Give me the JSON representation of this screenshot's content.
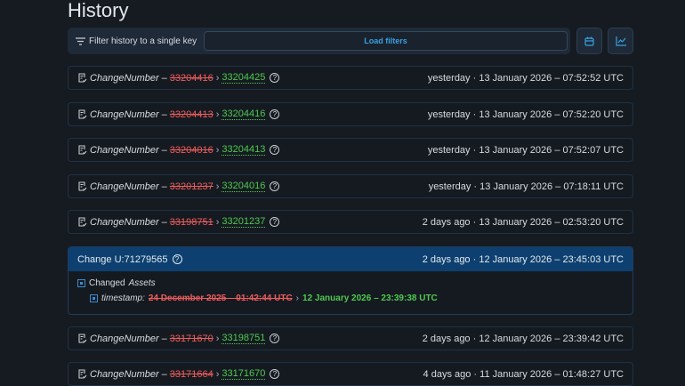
{
  "page_title": "History",
  "toolbar": {
    "filter_label": "Filter history to a single key",
    "load_filters": "Load filters",
    "calendar_icon": "calendar-icon",
    "chart_icon": "chart-line-icon"
  },
  "colors": {
    "old": "#ee5c5c",
    "new": "#4fc94f",
    "accent": "#3aa0e0",
    "expanded_header": "#0d4070"
  },
  "rows_top": [
    {
      "key": "ChangeNumber",
      "old": "33204416",
      "new": "33204425",
      "time": "yesterday · 13 January 2026 – 07:52:52 UTC"
    },
    {
      "key": "ChangeNumber",
      "old": "33204413",
      "new": "33204416",
      "time": "yesterday · 13 January 2026 – 07:52:20 UTC"
    },
    {
      "key": "ChangeNumber",
      "old": "33204016",
      "new": "33204413",
      "time": "yesterday · 13 January 2026 – 07:52:07 UTC"
    },
    {
      "key": "ChangeNumber",
      "old": "33201237",
      "new": "33204016",
      "time": "yesterday · 13 January 2026 – 07:18:11 UTC"
    },
    {
      "key": "ChangeNumber",
      "old": "33198751",
      "new": "33201237",
      "time": "2 days ago · 13 January 2026 – 02:53:20 UTC"
    }
  ],
  "expanded": {
    "title": "Change U:71279565",
    "time": "2 days ago · 12 January 2026 – 23:45:03 UTC",
    "group_prefix": "Changed",
    "group_name": "Assets",
    "field": "timestamp:",
    "old": "24 December 2025 – 01:42:44 UTC",
    "new": "12 January 2026 – 23:39:38 UTC"
  },
  "rows_bottom": [
    {
      "key": "ChangeNumber",
      "old": "33171670",
      "new": "33198751",
      "time": "2 days ago · 12 January 2026 – 23:39:42 UTC"
    },
    {
      "key": "ChangeNumber",
      "old": "33171664",
      "new": "33171670",
      "time": "4 days ago · 11 January 2026 – 01:48:27 UTC"
    }
  ]
}
